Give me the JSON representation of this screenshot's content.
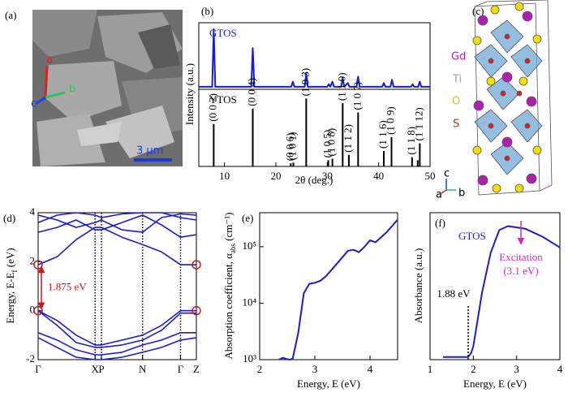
{
  "panel_a": {
    "label": "(a)",
    "axes": [
      "a",
      "b",
      "c"
    ],
    "scale_bar": "3 μm"
  },
  "panel_c": {
    "label": "(c)",
    "legend": [
      "Gd",
      "Ti",
      "O",
      "S"
    ],
    "axes": [
      "c",
      "a",
      "b"
    ]
  },
  "chart_data": [
    {
      "type": "line",
      "panel": "(b)",
      "ylabel": "Intensity (a.u.)",
      "series": [
        {
          "name": "GTOS",
          "color": "#1a1adb",
          "x": [
            5,
            7.6,
            7.9,
            8.2,
            15.2,
            15.5,
            15.8,
            23.0,
            23.3,
            23.6,
            25.6,
            25.9,
            26.2,
            30.0,
            30.3,
            30.6,
            31.0,
            31.3,
            32.7,
            33.0,
            33.3,
            34.0,
            34.3,
            35.7,
            36.0,
            36.3,
            40.7,
            41.0,
            41.3,
            42.3,
            42.6,
            42.9,
            46.3,
            46.6,
            46.9,
            47.7,
            48.0,
            48.3,
            50
          ],
          "values": [
            0.04,
            0.04,
            0.95,
            0.04,
            0.04,
            0.65,
            0.04,
            0.04,
            0.12,
            0.04,
            0.04,
            0.25,
            0.04,
            0.04,
            0.08,
            0.04,
            0.12,
            0.04,
            0.04,
            0.18,
            0.04,
            0.1,
            0.04,
            0.04,
            0.2,
            0.04,
            0.04,
            0.1,
            0.04,
            0.04,
            0.15,
            0.04,
            0.04,
            0.08,
            0.04,
            0.04,
            0.12,
            0.04,
            0.04
          ]
        }
      ],
      "xlim": [
        5,
        50
      ],
      "ylim": [
        0,
        1.05
      ]
    },
    {
      "type": "stem",
      "xlabel": "2θ (deg.)",
      "series": [
        {
          "name": "YTOS",
          "color": "#000000",
          "x": [
            7.9,
            15.5,
            22.9,
            23.4,
            25.9,
            30.2,
            31.0,
            33.0,
            34.2,
            36.0,
            41.0,
            42.5,
            46.5,
            47.6,
            48.0
          ],
          "values": [
            0.55,
            0.75,
            0.04,
            0.05,
            0.88,
            0.08,
            0.1,
            0.82,
            0.15,
            0.7,
            0.2,
            0.38,
            0.12,
            0.08,
            0.3
          ],
          "peak_labels": [
            "(0 0 2)",
            "(0 0 4)",
            "(0 0 6)",
            "(1 0 1)",
            "(1 0 3)",
            "(1 0 5)",
            "(1 0 8)",
            "(1 1 0)",
            "(1 1 2)",
            "(1 0 7)",
            "(1 1 6)",
            "(1 0 9)",
            "(1 1 8)",
            null,
            "(1 1 12)"
          ]
        }
      ],
      "xlim": [
        5,
        50
      ],
      "ylim": [
        0,
        1
      ],
      "xticks": [
        10,
        20,
        30,
        40,
        50
      ]
    },
    {
      "type": "band",
      "panel": "(d)",
      "ylabel": "Energy, E-E",
      "ylabel_sub": "f",
      "ylabel_end": " (eV)",
      "x": [
        0,
        0.12,
        0.24,
        0.36,
        0.4,
        0.53,
        0.66,
        0.78,
        0.9,
        1.0
      ],
      "series": [
        {
          "color": "#1a1adb",
          "values": [
            1.875,
            2.2,
            2.9,
            3.4,
            3.4,
            3.0,
            2.7,
            2.4,
            1.875,
            1.875
          ]
        },
        {
          "color": "#1a1adb",
          "values": [
            3.2,
            3.4,
            3.7,
            3.3,
            3.3,
            3.6,
            3.9,
            3.5,
            3.0,
            3.1
          ]
        },
        {
          "color": "#1a1adb",
          "values": [
            3.6,
            3.9,
            4.0,
            3.9,
            3.8,
            3.95,
            4.0,
            4.0,
            3.8,
            3.7
          ]
        },
        {
          "color": "#1a1adb",
          "values": [
            3.9,
            3.7,
            3.4,
            3.6,
            3.7,
            3.3,
            3.2,
            3.8,
            3.95,
            3.9
          ]
        },
        {
          "color": "#1a1adb",
          "values": [
            0,
            -0.4,
            -1.0,
            -1.4,
            -1.4,
            -1.2,
            -1.0,
            -0.6,
            0,
            0
          ]
        },
        {
          "color": "#1a1adb",
          "values": [
            0,
            -0.6,
            -1.3,
            -1.5,
            -1.5,
            -1.4,
            -1.2,
            -0.8,
            -0.1,
            -0.1
          ]
        },
        {
          "color": "#1a1adb",
          "values": [
            -0.9,
            -1.2,
            -1.6,
            -1.8,
            -1.8,
            -1.7,
            -1.4,
            -1.2,
            -0.9,
            -0.9
          ]
        },
        {
          "color": "#1a1adb",
          "values": [
            -1.1,
            -1.5,
            -1.9,
            -2.0,
            -2.0,
            -1.9,
            -1.7,
            -1.5,
            -1.2,
            -1.1
          ]
        }
      ],
      "xlim": [
        0,
        1
      ],
      "ylim": [
        -2,
        4
      ],
      "yticks": [
        -2,
        0,
        2,
        4
      ],
      "xticks": [
        {
          "value": 0,
          "label": "Γ"
        },
        {
          "value": 0.36,
          "label": "X"
        },
        {
          "value": 0.4,
          "label": "P"
        },
        {
          "value": 0.66,
          "label": "N"
        },
        {
          "value": 0.9,
          "label": "Γ"
        },
        {
          "value": 1.0,
          "label": "Z"
        }
      ],
      "grid": "x",
      "gap": {
        "value": 1.875,
        "label": "1.875 eV"
      }
    },
    {
      "type": "line",
      "panel": "(e)",
      "ylabel": "Absorption coefficient, α",
      "ylabel_sub": "abs",
      "ylabel_end": " (cm⁻¹)",
      "xlabel": "Energy, E (eV)",
      "series": [
        {
          "color": "#1a1adb",
          "x": [
            2.35,
            2.42,
            2.5,
            2.55,
            2.6,
            2.7,
            2.8,
            2.9,
            3.0,
            3.1,
            3.2,
            3.4,
            3.6,
            3.7,
            3.8,
            3.9,
            4.0,
            4.1,
            4.3,
            4.5
          ],
          "values": [
            1000,
            1080,
            1020,
            1000,
            1050,
            3000,
            15000,
            22000,
            23000,
            25000,
            30000,
            50000,
            85000,
            88000,
            80000,
            100000,
            130000,
            120000,
            180000,
            300000
          ]
        }
      ],
      "xlim": [
        2,
        4.5
      ],
      "xticks": [
        2,
        3,
        4
      ],
      "yscale": "log",
      "ylim": [
        1000,
        400000
      ],
      "yticks": [
        {
          "value": 1000,
          "label": "10³"
        },
        {
          "value": 10000,
          "label": "10⁴"
        },
        {
          "value": 100000,
          "label": "10⁵"
        }
      ]
    },
    {
      "type": "line",
      "panel": "(f)",
      "ylabel": "Absorbance (a.u.)",
      "xlabel": "Energy, E (eV)",
      "series": [
        {
          "name": "GTOS",
          "color": "#1a1adb",
          "x": [
            1.3,
            1.8,
            1.88,
            1.95,
            2.0,
            2.1,
            2.2,
            2.4,
            2.6,
            2.8,
            3.0,
            3.2,
            3.4,
            3.6,
            3.8,
            4.0
          ],
          "values": [
            0.02,
            0.02,
            0.02,
            0.05,
            0.1,
            0.3,
            0.5,
            0.8,
            0.97,
            1.0,
            0.99,
            0.98,
            0.95,
            0.92,
            0.88,
            0.84
          ]
        }
      ],
      "xlim": [
        1,
        4
      ],
      "xticks": [
        1,
        2,
        3,
        4
      ],
      "ylim": [
        0,
        1.1
      ],
      "edge": {
        "value": 1.88,
        "label": "1.88 eV"
      },
      "excitation": {
        "value": 3.1,
        "label": "Excitation",
        "sublabel": "(3.1 eV)"
      }
    }
  ]
}
